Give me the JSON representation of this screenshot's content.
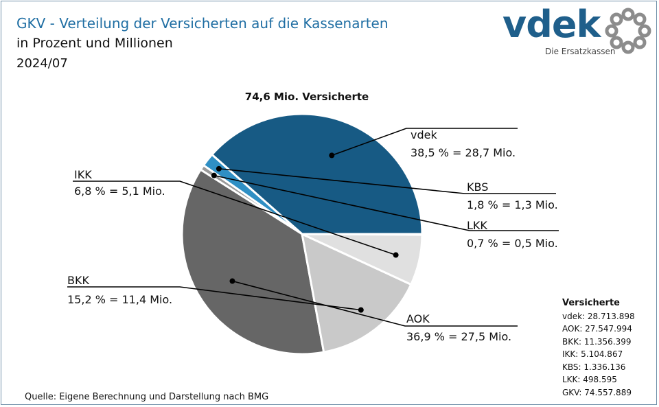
{
  "header": {
    "title": "GKV - Verteilung der Versicherten auf die Kassenarten",
    "subtitle": "in Prozent und Millionen",
    "date": "2024/07"
  },
  "logo": {
    "word": "vdek",
    "tagline": "Die Ersatzkassen",
    "accent_color": "#1f5f8b",
    "ring_color": "#8c8c8c"
  },
  "chart_data": {
    "type": "pie",
    "title": "74,6 Mio. Versicherte",
    "slices": [
      {
        "name": "vdek",
        "percent": 38.5,
        "label": "38,5 % = 28,7 Mio.",
        "color": "#175a84"
      },
      {
        "name": "KBS",
        "percent": 1.8,
        "label": "1,8 % = 1,3 Mio.",
        "color": "#2f8fc4"
      },
      {
        "name": "LKK",
        "percent": 0.7,
        "label": "0,7 % = 0,5 Mio.",
        "color": "#9a9a9a"
      },
      {
        "name": "AOK",
        "percent": 36.9,
        "label": "36,9 % = 27,5 Mio.",
        "color": "#666666"
      },
      {
        "name": "BKK",
        "percent": 15.2,
        "label": "15,2 % = 11,4 Mio.",
        "color": "#c9c9c9"
      },
      {
        "name": "IKK",
        "percent": 6.8,
        "label": "6,8 % = 5,1 Mio.",
        "color": "#e0e0e0"
      }
    ]
  },
  "legend": {
    "heading": "Versicherte",
    "rows": [
      "vdek: 28.713.898",
      "AOK: 27.547.994",
      "BKK: 11.356.399",
      "IKK: 5.104.867",
      "KBS: 1.336.136",
      "LKK: 498.595",
      "GKV: 74.557.889"
    ]
  },
  "source": "Quelle: Eigene Berechnung und Darstellung nach BMG"
}
